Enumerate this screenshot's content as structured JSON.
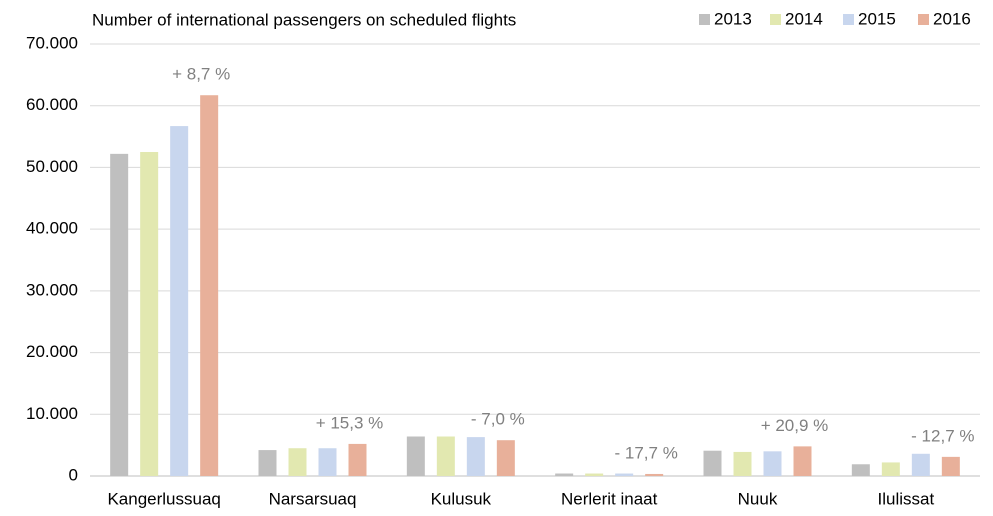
{
  "chart_data": {
    "type": "bar",
    "title": "Number of international passengers on scheduled flights",
    "categories": [
      "Kangerlussuaq",
      "Narsarsuaq",
      "Kulusuk",
      "Nerlerit inaat",
      "Nuuk",
      "Ilulissat"
    ],
    "series": [
      {
        "name": "2013",
        "color": "#bfbfbf",
        "values": [
          52200,
          4200,
          6400,
          400,
          4100,
          1900
        ]
      },
      {
        "name": "2014",
        "color": "#e2e8b0",
        "values": [
          52500,
          4500,
          6400,
          400,
          3900,
          2200
        ]
      },
      {
        "name": "2015",
        "color": "#c8d6ee",
        "values": [
          56700,
          4500,
          6300,
          400,
          4000,
          3600
        ]
      },
      {
        "name": "2016",
        "color": "#e8b09a",
        "values": [
          61700,
          5200,
          5800,
          330,
          4800,
          3100
        ]
      }
    ],
    "annotations": [
      "+ 8,7 %",
      "+ 15,3 %",
      "- 7,0 %",
      "- 17,7 %",
      "+ 20,9 %",
      "- 12,7 %"
    ],
    "ylim": [
      0,
      70000
    ],
    "yticks": [
      {
        "value": 0,
        "label": "0"
      },
      {
        "value": 10000,
        "label": "10.000"
      },
      {
        "value": 20000,
        "label": "20.000"
      },
      {
        "value": 30000,
        "label": "30.000"
      },
      {
        "value": 40000,
        "label": "40.000"
      },
      {
        "value": 50000,
        "label": "50.000"
      },
      {
        "value": 60000,
        "label": "60.000"
      },
      {
        "value": 70000,
        "label": "70.000"
      }
    ],
    "grid": true,
    "legend": "top-right"
  }
}
